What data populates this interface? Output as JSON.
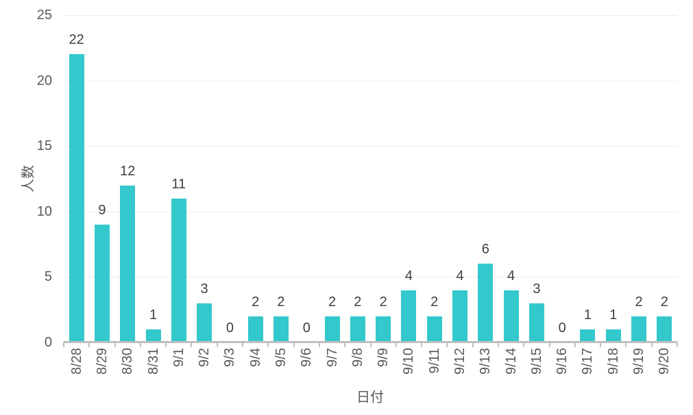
{
  "colors": {
    "bar": "#33c8cb",
    "gridline": "#ededed",
    "axis_line": "#bfbfbf",
    "tick_text": "#595959",
    "value_label_text": "#404040",
    "background": "#ffffff"
  },
  "chart_data": {
    "type": "bar",
    "title": "",
    "xlabel": "日付",
    "ylabel": "人数",
    "categories": [
      "8/28",
      "8/29",
      "8/30",
      "8/31",
      "9/1",
      "9/2",
      "9/3",
      "9/4",
      "9/5",
      "9/6",
      "9/7",
      "9/8",
      "9/9",
      "9/10",
      "9/11",
      "9/12",
      "9/13",
      "9/14",
      "9/15",
      "9/16",
      "9/17",
      "9/18",
      "9/19",
      "9/20"
    ],
    "values": [
      22,
      9,
      12,
      1,
      11,
      3,
      0,
      2,
      2,
      0,
      2,
      2,
      2,
      4,
      2,
      4,
      6,
      4,
      3,
      0,
      1,
      1,
      2,
      2
    ],
    "ylim": [
      0,
      25
    ],
    "yticks": [
      0,
      5,
      10,
      15,
      20,
      25
    ],
    "grid": true,
    "data_labels": true,
    "legend": "none"
  }
}
